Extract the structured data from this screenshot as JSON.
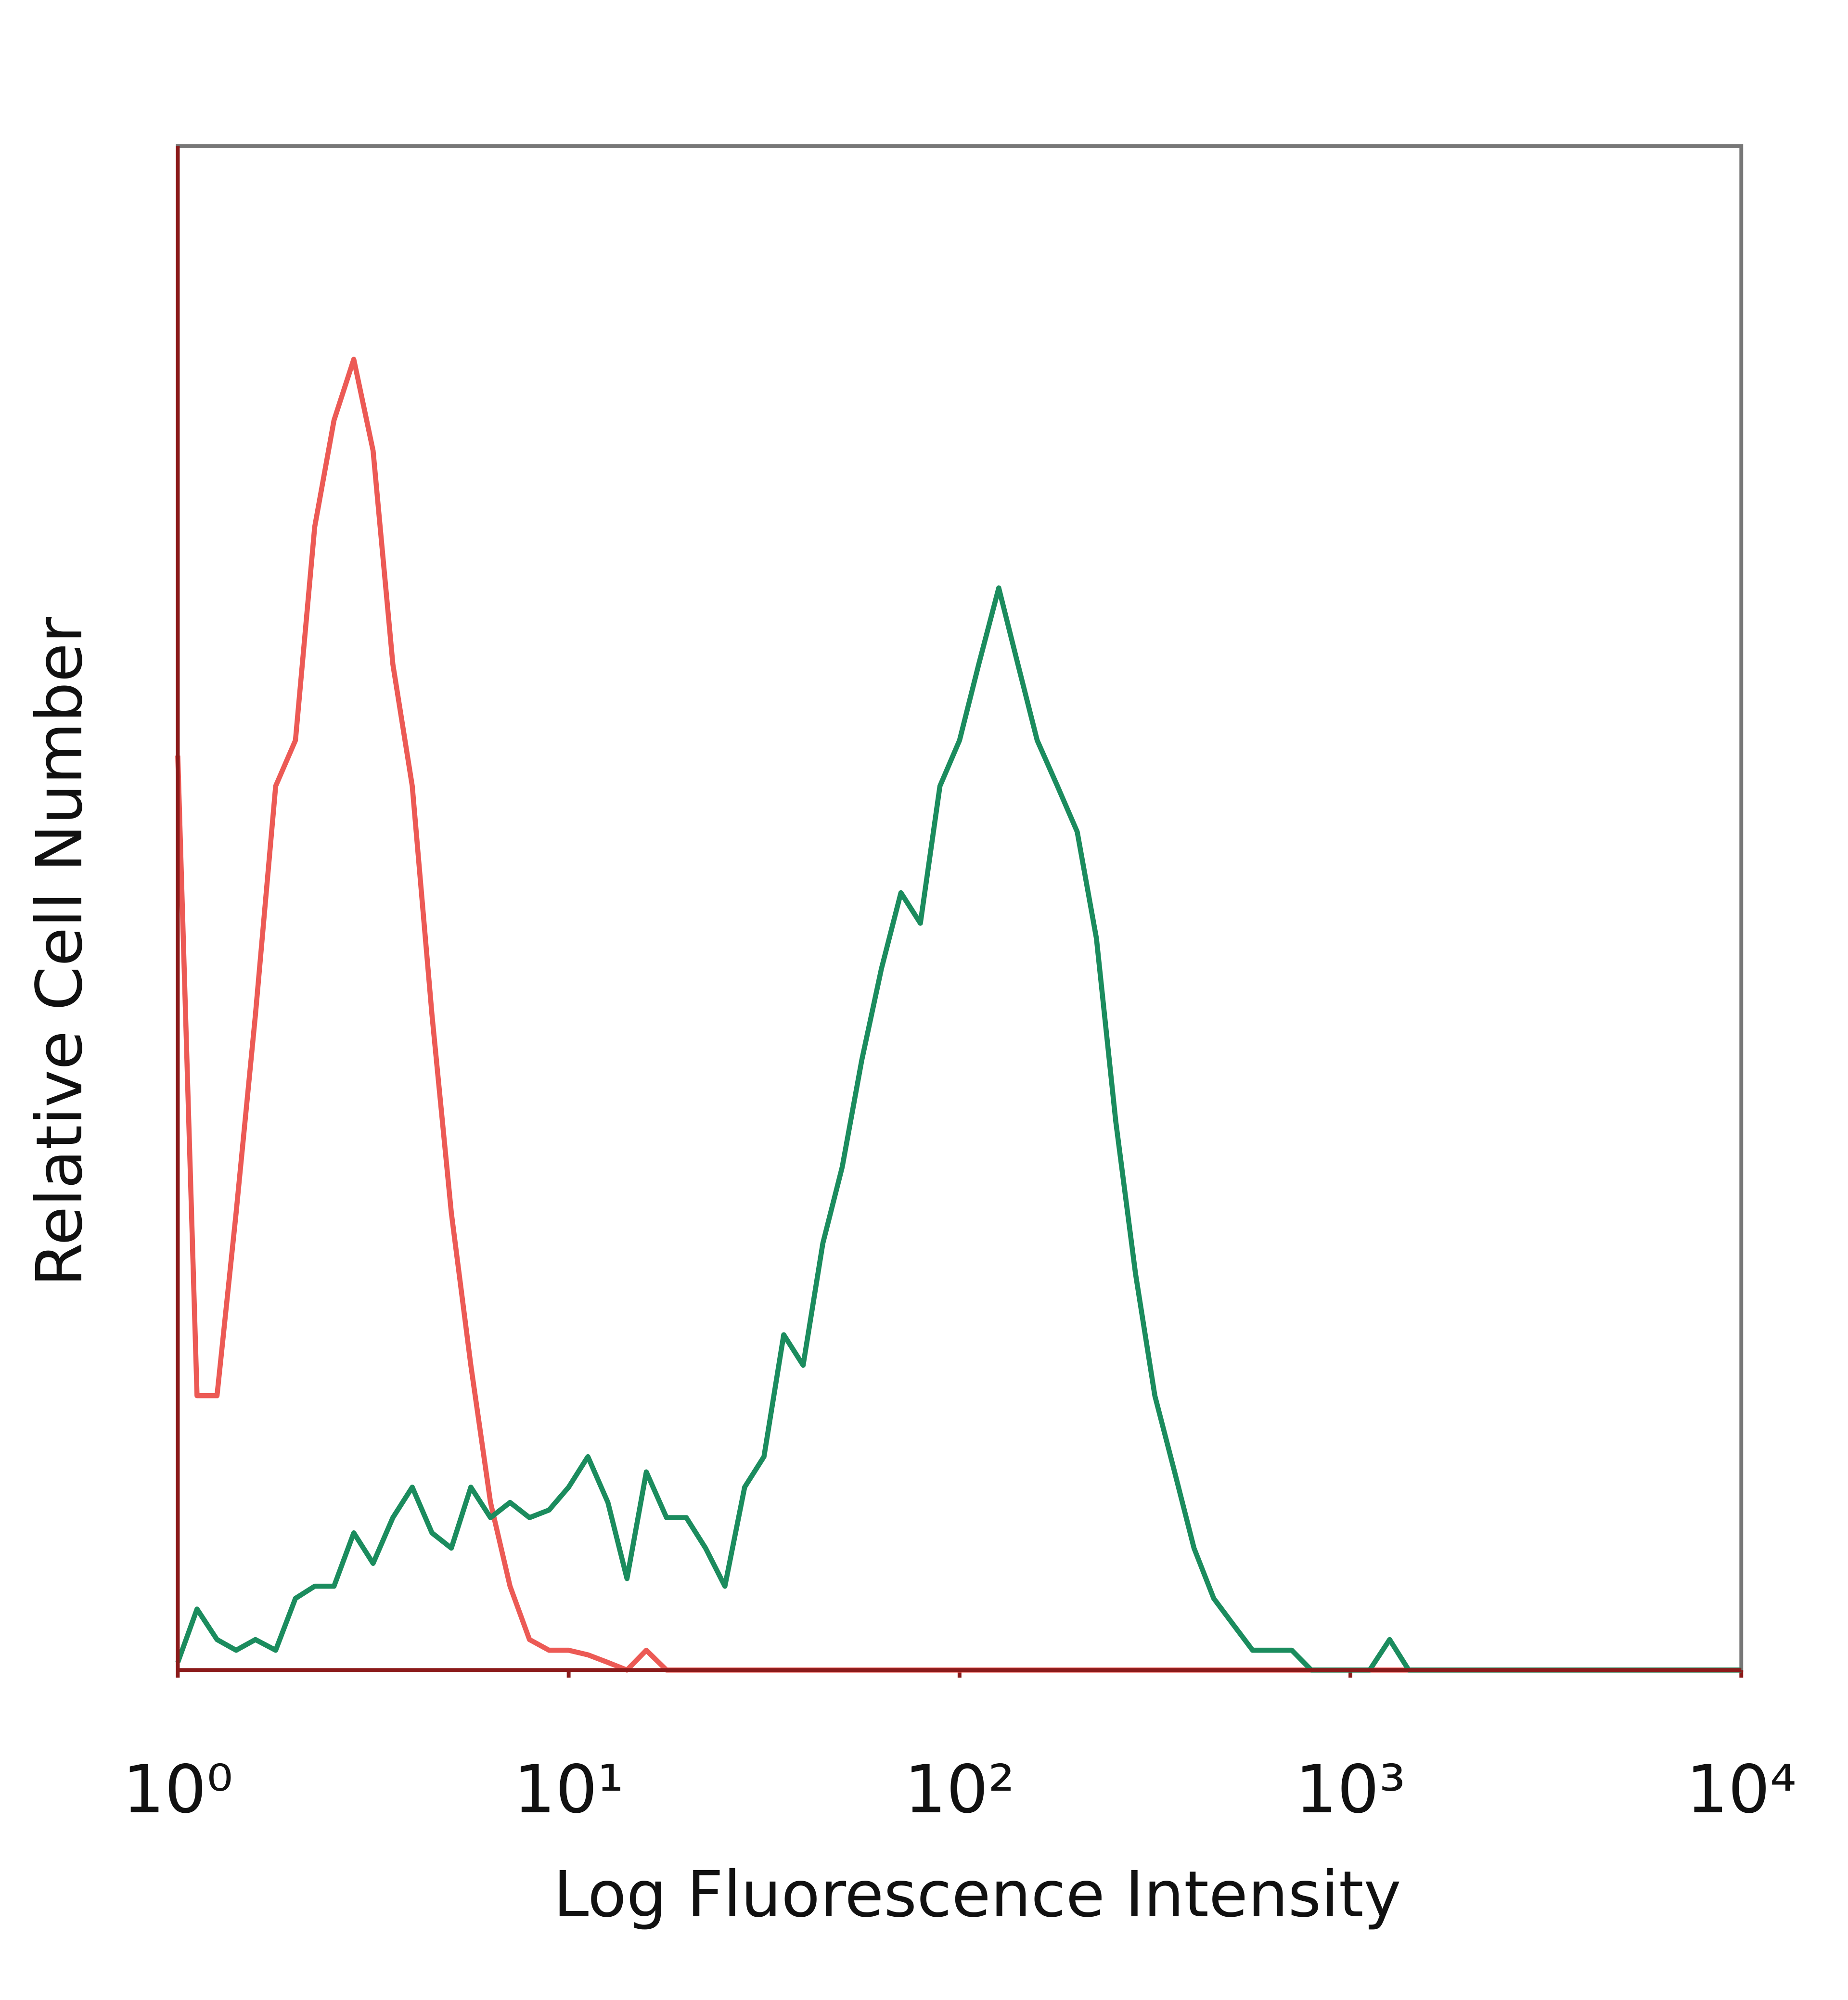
{
  "chart_data": {
    "type": "line",
    "xlabel": "Log Fluorescence Intensity",
    "ylabel": "Relative Cell Number",
    "xscale": "log",
    "xlim": [
      1,
      10000
    ],
    "xticks": [
      {
        "value": 1,
        "label": "10⁰"
      },
      {
        "value": 10,
        "label": "10¹"
      },
      {
        "value": 100,
        "label": "10²"
      },
      {
        "value": 1000,
        "label": "10³"
      },
      {
        "value": 10000,
        "label": "10⁴"
      }
    ],
    "ylim": [
      0,
      100
    ],
    "grid": false,
    "x": [
      1,
      1.12,
      1.26,
      1.41,
      1.58,
      1.78,
      2,
      2.24,
      2.51,
      2.82,
      3.16,
      3.55,
      3.98,
      4.47,
      5.01,
      5.62,
      6.31,
      7.08,
      7.94,
      8.91,
      10,
      11.2,
      12.6,
      14.1,
      15.8,
      17.8,
      20,
      22.4,
      25.1,
      28.2,
      31.6,
      35.5,
      39.8,
      44.7,
      50.1,
      56.2,
      63.1,
      70.8,
      79.4,
      89.1,
      100,
      112,
      126,
      141,
      158,
      178,
      200,
      224,
      251,
      282,
      316,
      355,
      398,
      447,
      501,
      562,
      631,
      708,
      794,
      891,
      1000,
      1120,
      1260,
      1410,
      1580,
      1780,
      2000,
      2240,
      2510,
      2820,
      3160,
      3550,
      3980,
      4470,
      5010,
      5620,
      6310,
      7080,
      7940,
      8910,
      10000
    ],
    "series": [
      {
        "color": "#ec5a55",
        "values": [
          60,
          18,
          18,
          30,
          43,
          58,
          61,
          75,
          82,
          86,
          80,
          66,
          58,
          43,
          30,
          20,
          11,
          5.5,
          2,
          1.3,
          1.3,
          1,
          0.5,
          0,
          1.3,
          0,
          0,
          0,
          0,
          0,
          0,
          0,
          0,
          0,
          0,
          0,
          0,
          0,
          0,
          0,
          0,
          0,
          0,
          0,
          0,
          0,
          0,
          0,
          0,
          0,
          0,
          0,
          0,
          0,
          0,
          0,
          0,
          0,
          0,
          0,
          0,
          0,
          0,
          0,
          0,
          0,
          0,
          0,
          0,
          0,
          0,
          0,
          0,
          0,
          0,
          0,
          0,
          0,
          0,
          0,
          0
        ]
      },
      {
        "color": "#1b8c5e",
        "values": [
          0.5,
          4,
          2,
          1.3,
          2,
          1.3,
          4.7,
          5.5,
          5.5,
          9,
          7,
          10,
          12,
          9,
          8,
          12,
          10,
          11,
          10,
          10.5,
          12,
          14,
          11,
          6,
          13,
          10,
          10,
          8,
          5.5,
          12,
          14,
          22,
          20,
          28,
          33,
          40,
          46,
          51,
          49,
          58,
          61,
          66,
          71,
          66,
          61,
          58,
          55,
          48,
          36,
          26,
          18,
          13,
          8,
          4.7,
          3,
          1.3,
          1.3,
          1.3,
          0,
          0,
          0,
          0,
          2,
          0,
          0,
          0,
          0,
          0,
          0,
          0,
          0,
          0,
          0,
          0,
          0,
          0,
          0,
          0,
          0,
          0,
          0
        ]
      }
    ]
  }
}
